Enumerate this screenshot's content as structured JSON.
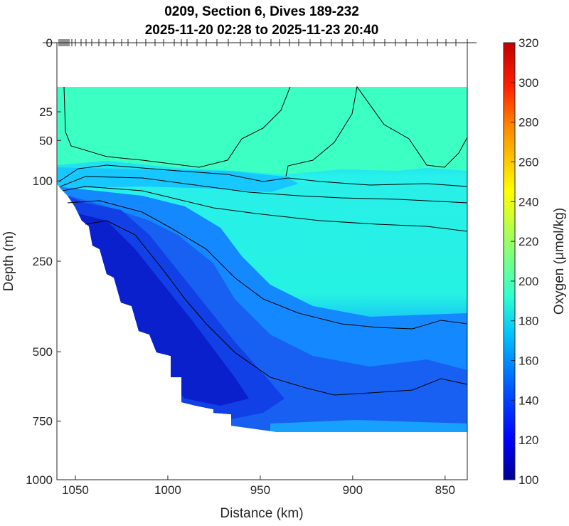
{
  "chart_data": {
    "type": "heatmap",
    "subtype": "filled-contour section",
    "title": [
      "0209, Section 6, Dives 189-232",
      "2025-11-20 02:28 to 2025-11-23 20:40"
    ],
    "xlabel": "Distance (km)",
    "ylabel": "Depth (m)",
    "xlim": [
      1060,
      838
    ],
    "x_reversed": true,
    "x_ticks": [
      "1050",
      "1000",
      "950",
      "900",
      "850"
    ],
    "ylim": [
      0,
      1000
    ],
    "y_scale": "sqrt",
    "y_reversed": true,
    "y_ticks": [
      "0",
      "25",
      "50",
      "100",
      "250",
      "500",
      "750",
      "1000"
    ],
    "colorbar": {
      "label": "Oxygen (μmol/kg)",
      "range": [
        100,
        320
      ],
      "ticks": [
        "320",
        "300",
        "280",
        "260",
        "240",
        "220",
        "200",
        "180",
        "160",
        "140",
        "120",
        "100"
      ],
      "colormap": "jet"
    },
    "data_top_depth_m": 15,
    "data_bottom_depth_m": 790,
    "regions": [
      {
        "name": "surface layer",
        "depth_m": [
          15,
          100
        ],
        "oxygen": 195
      },
      {
        "name": "intermediate layer",
        "depth_m": [
          150,
          450
        ],
        "oxygen": 180
      },
      {
        "name": "low-oxygen slope wedge",
        "distance_km": [
          1055,
          960
        ],
        "depth_m": [
          150,
          700
        ],
        "oxygen": 125
      },
      {
        "name": "deep layer",
        "depth_m": [
          500,
          790
        ],
        "oxygen": 150
      }
    ]
  }
}
